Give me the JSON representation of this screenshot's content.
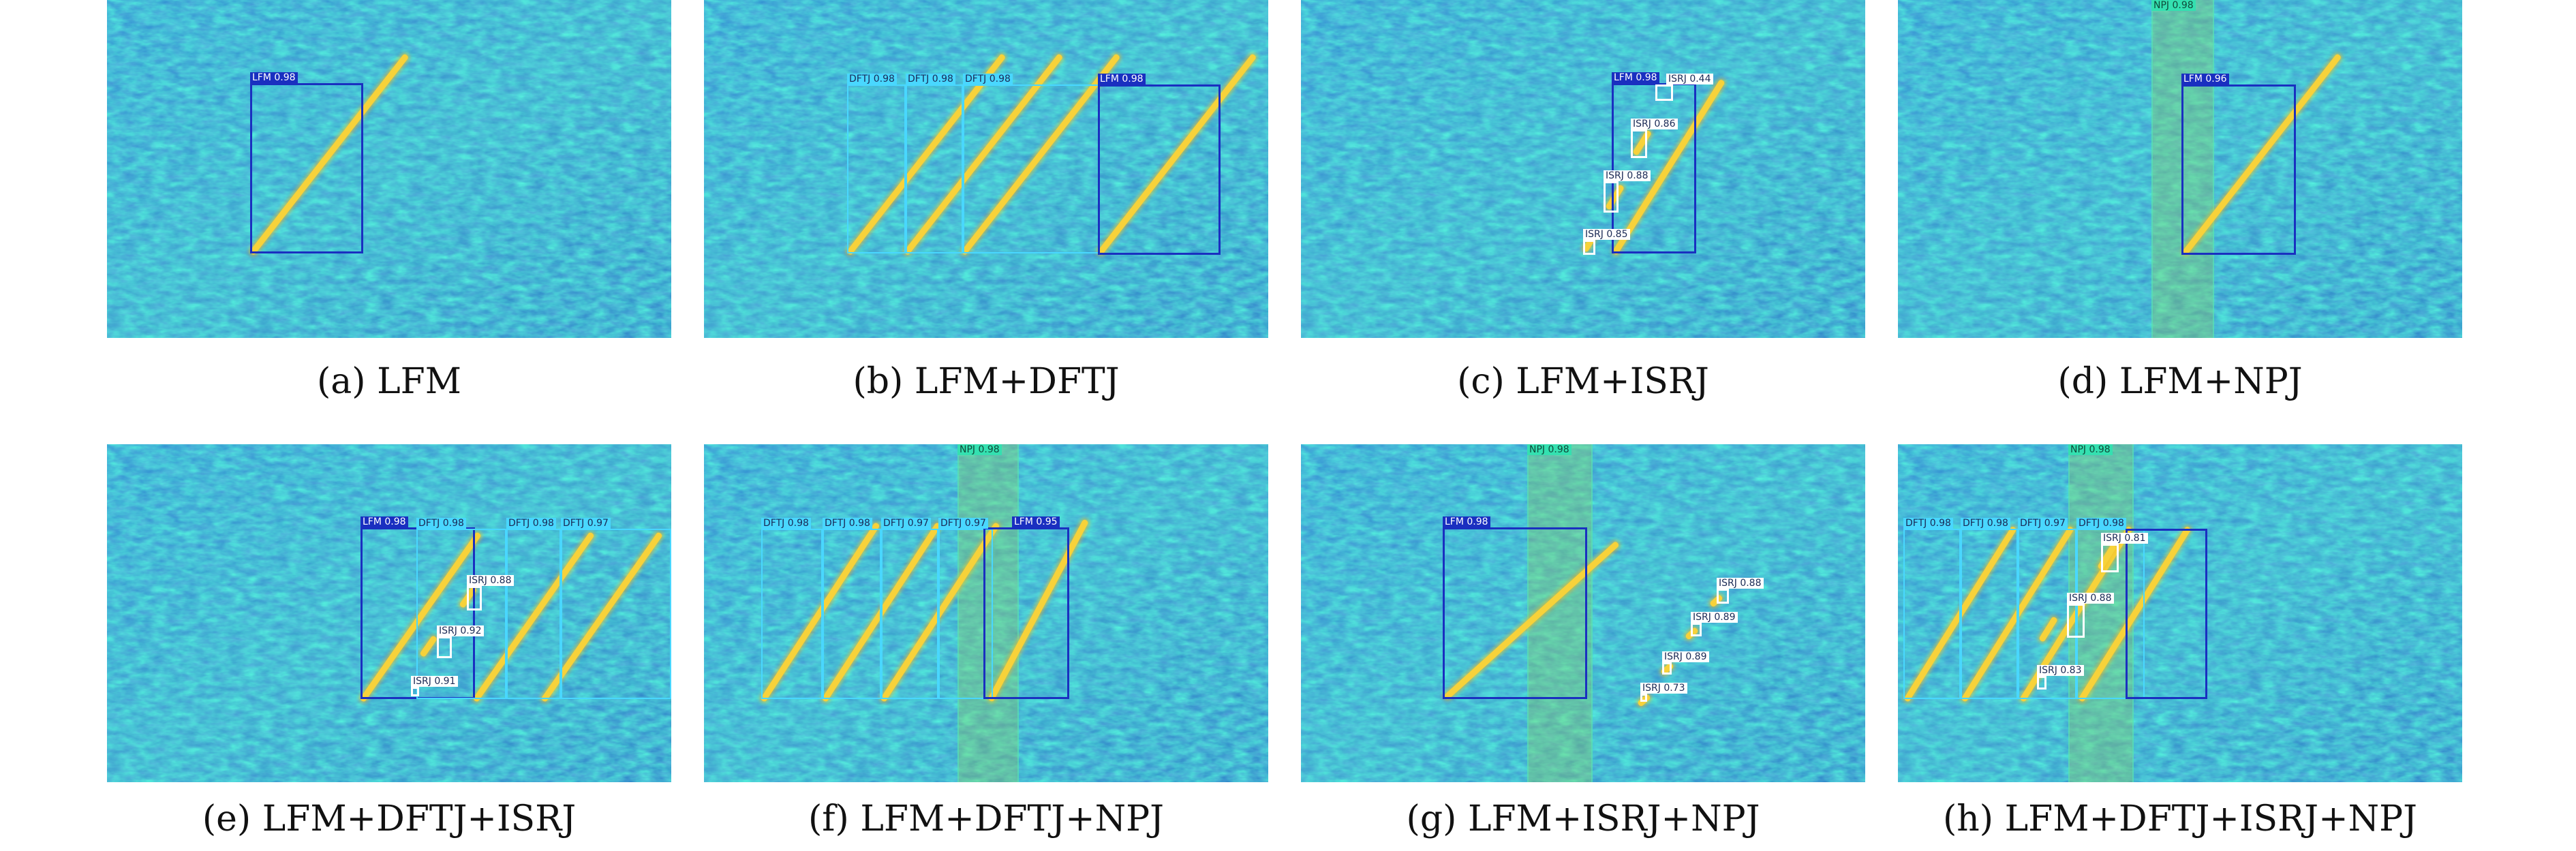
{
  "panels": [
    {
      "caption": "(a) LFM",
      "labels": {
        "lfm": "LFM 0.98"
      }
    },
    {
      "caption": "(b) LFM+DFTJ",
      "labels": {
        "dftj": [
          "DFTJ 0.98",
          "DFTJ 0.98",
          "DFTJ 0.98"
        ],
        "lfm": "LFM 0.98"
      }
    },
    {
      "caption": "(c) LFM+ISRJ",
      "labels": {
        "lfm": "LFM 0.98",
        "isrj": [
          "ISRJ 0.44",
          "ISRJ 0.86",
          "ISRJ 0.88",
          "ISRJ 0.85"
        ]
      }
    },
    {
      "caption": "(d) LFM+NPJ",
      "labels": {
        "npj": "NPJ 0.98",
        "lfm": "LFM 0.96"
      }
    },
    {
      "caption": "(e) LFM+DFTJ+ISRJ",
      "labels": {
        "lfm": "LFM 0.98",
        "dftj": [
          "DFTJ 0.98",
          "DFTJ 0.98",
          "DFTJ 0.97"
        ],
        "isrj": [
          "ISRJ 0.88",
          "ISRJ 0.92",
          "ISRJ 0.91"
        ]
      }
    },
    {
      "caption": "(f) LFM+DFTJ+NPJ",
      "labels": {
        "npj": "NPJ 0.98",
        "dftj": [
          "DFTJ 0.98",
          "DFTJ 0.98",
          "DFTJ 0.97",
          "DFTJ 0.97"
        ],
        "lfm": "LFM 0.95"
      }
    },
    {
      "caption": "(g) LFM+ISRJ+NPJ",
      "labels": {
        "npj": "NPJ 0.98",
        "lfm": "LFM 0.98",
        "isrj": [
          "ISRJ 0.88",
          "ISRJ 0.89",
          "ISRJ 0.89",
          "ISRJ 0.73"
        ]
      }
    },
    {
      "caption": "(h) LFM+DFTJ+ISRJ+NPJ",
      "labels": {
        "npj": "NPJ 0.98",
        "dftj": [
          "DFTJ 0.98",
          "DFTJ 0.98",
          "DFTJ 0.97",
          "DFTJ 0.98"
        ],
        "isrj": [
          "ISRJ 0.81",
          "ISRJ 0.88",
          "ISRJ 0.83"
        ]
      }
    }
  ],
  "colors": {
    "background": "#2b7fd0",
    "signal": "#f7d23a",
    "lfm_box": "#1a2fc0",
    "dftj_box": "#49d7ff",
    "isrj_box": "#ffffff",
    "npj_band": "#34e0b0"
  }
}
